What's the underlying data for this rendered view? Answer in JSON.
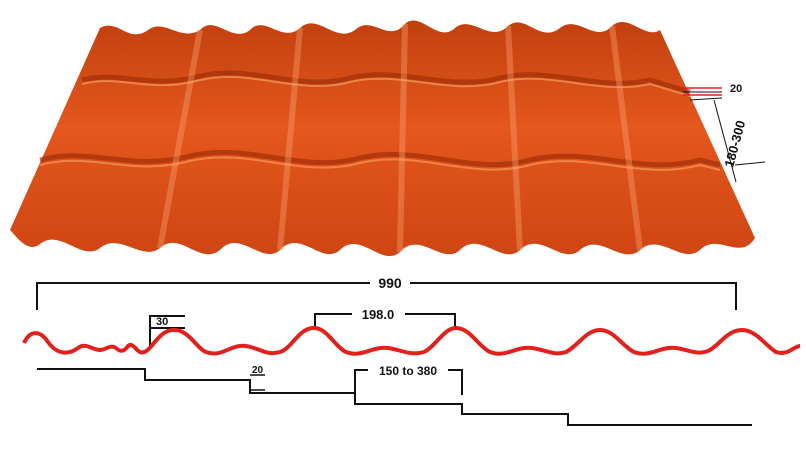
{
  "colors": {
    "roof_dark": "#b8360c",
    "roof_mid": "#e0531b",
    "roof_light": "#f07a3a",
    "profile_red": "#e0211c",
    "dimension_line": "#111111",
    "background": "#ffffff"
  },
  "labels": {
    "thickness": "20",
    "step_height": "180-300",
    "total_width": "990",
    "pitch": "198.0",
    "wave_height": "30",
    "step_drop": "20",
    "step_length": "150 to 380"
  }
}
